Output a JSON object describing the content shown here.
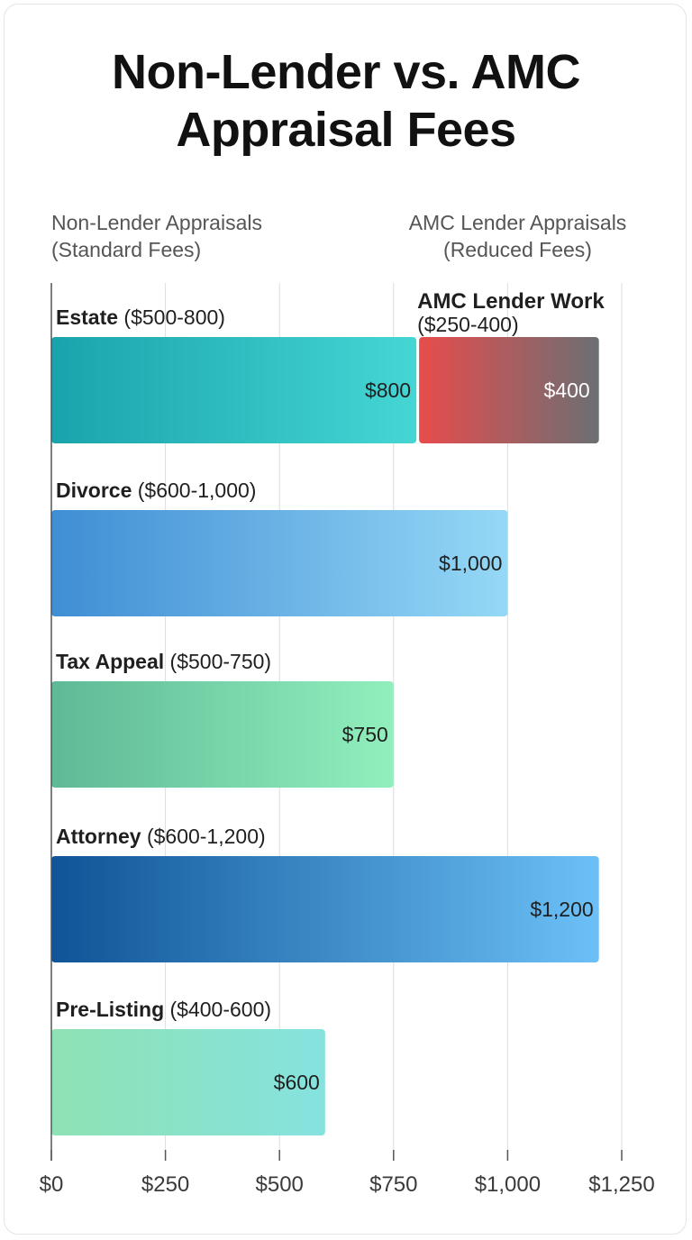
{
  "title": "Non-Lender vs. AMC Appraisal Fees",
  "column_headers": {
    "left": [
      "Non-Lender Appraisals",
      "(Standard Fees)"
    ],
    "right": [
      "AMC Lender Appraisals",
      "(Reduced Fees)"
    ]
  },
  "chart_data": {
    "type": "bar",
    "orientation": "horizontal",
    "title": "Non-Lender vs. AMC Appraisal Fees",
    "xlim": [
      0,
      1250
    ],
    "x_ticks": [
      0,
      250,
      500,
      750,
      1000,
      1250
    ],
    "x_tick_labels": [
      "$0",
      "$250",
      "$500",
      "$750",
      "$1,000",
      "$1,250"
    ],
    "grid": true,
    "categories": [
      {
        "name": "Estate",
        "range": "($500-800)",
        "value": 800,
        "value_label": "$800",
        "colors": [
          "#1aa3ac",
          "#45d6d4"
        ]
      },
      {
        "name": "Divorce",
        "range": "($600-1,000)",
        "value": 1000,
        "value_label": "$1,000",
        "colors": [
          "#3f8dd4",
          "#95d8f6"
        ]
      },
      {
        "name": "Tax Appeal",
        "range": "($500-750)",
        "value": 750,
        "value_label": "$750",
        "colors": [
          "#5fb996",
          "#91efbd"
        ]
      },
      {
        "name": "Attorney",
        "range": "($600-1,200)",
        "value": 1200,
        "value_label": "$1,200",
        "colors": [
          "#0f5496",
          "#6cc0f7"
        ]
      },
      {
        "name": "Pre-Listing",
        "range": "($400-600)",
        "value": 600,
        "value_label": "$600",
        "colors": [
          "#8ee2b3",
          "#86e2df"
        ]
      }
    ],
    "amc_bar": {
      "category": "Estate",
      "title": "AMC Lender Work",
      "range": "($250-400)",
      "start": 800,
      "value": 400,
      "value_label": "$400",
      "colors": [
        "#e84c4c",
        "#6b6f73"
      ]
    }
  }
}
